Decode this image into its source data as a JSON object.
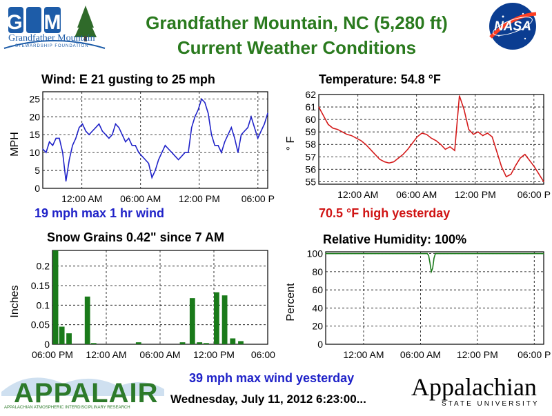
{
  "header": {
    "title_line1": "Grandfather Mountain, NC  (5,280 ft)",
    "title_line2": "Current Weather Conditions",
    "logo_left_text": "Grandfather Mountain",
    "logo_left_sub": "STEWARDSHIP FOUNDATION",
    "logo_right_text": "NASA"
  },
  "panels": {
    "wind": {
      "title": "Wind:    E   21 gusting to 25 mph",
      "note": "19 mph max 1 hr wind"
    },
    "temperature": {
      "title": "Temperature:  54.8 °F",
      "note": "70.5 °F high yesterday"
    },
    "snow": {
      "title": "Snow Grains     0.42\" since 7 AM"
    },
    "humidity": {
      "title": "Relative Humidity:    100%"
    }
  },
  "footer": {
    "max_wind": "39 mph max wind yesterday",
    "timestamp": "Wednesday, July 11, 2012 6:23:00...",
    "logo_left_text": "APPALAIR",
    "logo_left_sub": "APPALACHIAN ATMOSPHERIC INTERDISCIPLINARY RESEARCH",
    "logo_right_text": "Appalachian",
    "logo_right_sub": "STATE UNIVERSITY"
  },
  "colors": {
    "title_green": "#2a7a1e",
    "wind_line": "#1f22c8",
    "temp_line": "#d41a1a",
    "bar_green": "#1a7a1a",
    "rh_line": "#1a7a1a"
  },
  "chart_data": [
    {
      "id": "wind",
      "type": "line",
      "ylabel": "MPH",
      "ylim": [
        0,
        27
      ],
      "yticks": [
        0,
        5,
        10,
        15,
        20,
        25
      ],
      "xticks": [
        "12:00 AM",
        "06:00 AM",
        "12:00 PM",
        "06:00 P"
      ],
      "xlim": [
        0,
        23
      ],
      "xtick_pos": [
        4,
        10,
        16,
        22
      ],
      "grid": true,
      "series": [
        {
          "values": [
            11,
            10,
            13,
            12,
            14,
            14,
            10,
            2,
            8,
            12,
            14,
            17,
            18,
            16,
            15,
            16,
            17,
            18,
            16,
            15,
            14,
            15,
            18,
            17,
            15,
            13,
            14,
            12,
            12,
            10,
            9,
            8,
            7,
            3,
            5,
            8,
            10,
            12,
            11,
            10,
            9,
            8,
            9,
            10,
            10,
            17,
            20,
            22,
            25,
            24,
            21,
            15,
            12,
            12,
            10,
            13,
            15,
            17,
            14,
            10,
            15,
            16,
            17,
            20,
            17,
            14,
            16,
            18,
            21
          ]
        }
      ]
    },
    {
      "id": "temperature",
      "type": "line",
      "ylabel": "° F",
      "ylim": [
        54.8,
        62
      ],
      "yticks": [
        55,
        56,
        57,
        58,
        59,
        60,
        61,
        62
      ],
      "xticks": [
        "12:00 AM",
        "06:00 AM",
        "12:00 PM",
        "06:00 P"
      ],
      "xlim": [
        0,
        23
      ],
      "xtick_pos": [
        4,
        10,
        16,
        22
      ],
      "grid": true,
      "series": [
        {
          "values": [
            61,
            60.3,
            59.6,
            59.3,
            59.2,
            59.0,
            58.8,
            58.7,
            58.5,
            58.3,
            58.0,
            57.6,
            57.2,
            56.8,
            56.6,
            56.5,
            56.6,
            56.9,
            57.2,
            57.6,
            58.1,
            58.6,
            58.9,
            58.8,
            58.5,
            58.3,
            58.0,
            57.6,
            57.8,
            57.5,
            61.9,
            60.8,
            59.2,
            58.8,
            59.0,
            58.7,
            58.9,
            58.6,
            57.4,
            56.2,
            55.4,
            55.6,
            56.3,
            56.9,
            57.2,
            56.7,
            56.2,
            55.6,
            55.0
          ]
        }
      ]
    },
    {
      "id": "snow",
      "type": "bar",
      "ylabel": "Inches",
      "ylim": [
        0,
        0.24
      ],
      "yticks": [
        0,
        0.05,
        0.1,
        0.15,
        0.2
      ],
      "ytick_labels": [
        "0",
        "0.05",
        "0.1",
        "0.15",
        "0.2"
      ],
      "xticks": [
        "06:00 PM",
        "12:00 AM",
        "06:00 AM",
        "12:00 PM",
        "06:00 P"
      ],
      "xlim": [
        0,
        24
      ],
      "xtick_pos": [
        0,
        6,
        12,
        18,
        24
      ],
      "grid": true,
      "bars": [
        {
          "x": 0.05,
          "v": 0.24
        },
        {
          "x": 0.75,
          "v": 0.045
        },
        {
          "x": 1.55,
          "v": 0.028
        },
        {
          "x": 3.6,
          "v": 0.122
        },
        {
          "x": 4.3,
          "v": 0.003
        },
        {
          "x": 9.3,
          "v": 0.005
        },
        {
          "x": 14.2,
          "v": 0.005
        },
        {
          "x": 15.3,
          "v": 0.118
        },
        {
          "x": 16.1,
          "v": 0.005
        },
        {
          "x": 16.85,
          "v": 0.003
        },
        {
          "x": 18.0,
          "v": 0.133
        },
        {
          "x": 18.9,
          "v": 0.125
        },
        {
          "x": 19.8,
          "v": 0.015
        },
        {
          "x": 20.7,
          "v": 0.008
        }
      ]
    },
    {
      "id": "humidity",
      "type": "line",
      "ylabel": "Percent",
      "ylim": [
        0,
        102
      ],
      "yticks": [
        0,
        20,
        40,
        60,
        80,
        100
      ],
      "xticks": [
        "12:00 AM",
        "06:00 AM",
        "12:00 PM",
        "06:00 P"
      ],
      "xlim": [
        0,
        23
      ],
      "xtick_pos": [
        4,
        10,
        16,
        22
      ],
      "grid": true,
      "series": [
        {
          "values": [
            100,
            100,
            100,
            100,
            100,
            100,
            100,
            100,
            100,
            100,
            100,
            100,
            100,
            100,
            100,
            100,
            100,
            100,
            100,
            100,
            100,
            100,
            100,
            100,
            100,
            100,
            100,
            100,
            100,
            100,
            100,
            100,
            100,
            100,
            100,
            100,
            100,
            100,
            100,
            100,
            100,
            100,
            100,
            100,
            100,
            100,
            100,
            100,
            100,
            100,
            100,
            100,
            100,
            100,
            100,
            100,
            100,
            100,
            100,
            100,
            100,
            100,
            100,
            100,
            100,
            100,
            100,
            100,
            100,
            100,
            100,
            100,
            100,
            100,
            100,
            100,
            98,
            90,
            80,
            84,
            95,
            100,
            100,
            100,
            100,
            100,
            100,
            100,
            100,
            100,
            100,
            100,
            100,
            100,
            100,
            100,
            100,
            100,
            100,
            100,
            100,
            100,
            100,
            100,
            100,
            100,
            100,
            100,
            100,
            100,
            100,
            100,
            100,
            100,
            100,
            100,
            100,
            100,
            100,
            100,
            100,
            100,
            100,
            100,
            100,
            100,
            100,
            100,
            100,
            100,
            100,
            100,
            100,
            100,
            100,
            100,
            100,
            100,
            100,
            100,
            100,
            100,
            100,
            100,
            100,
            100,
            100,
            100,
            100,
            100,
            100,
            100,
            100,
            100,
            100,
            100,
            100,
            100,
            100,
            100,
            100,
            100
          ]
        }
      ]
    }
  ]
}
